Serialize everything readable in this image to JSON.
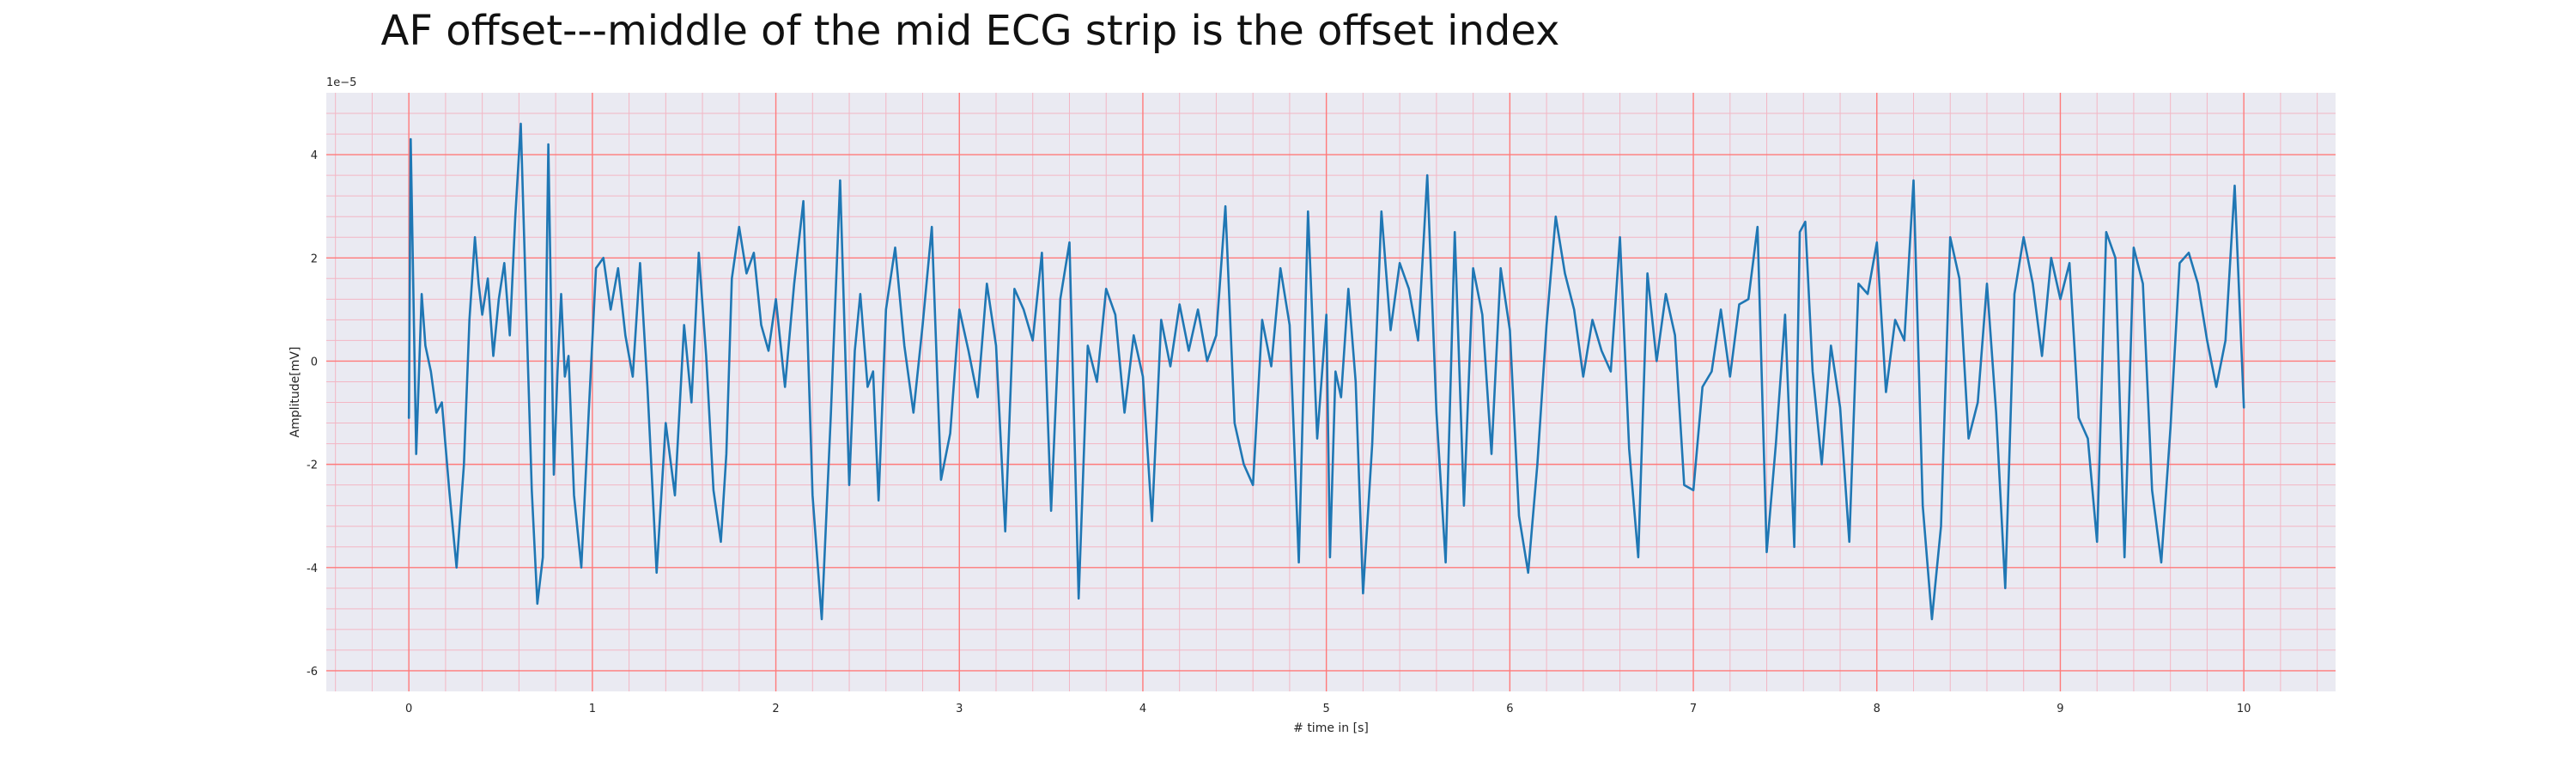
{
  "chart_data": {
    "type": "line",
    "title": "AF offset---middle of the mid ECG strip is the offset index",
    "xlabel": "# time in [s]",
    "ylabel": "Amplitude[mV]",
    "y_scale_label": "1e−5",
    "xlim": [
      -0.45,
      10.5
    ],
    "ylim": [
      -6.4,
      5.2
    ],
    "x_ticks": [
      0,
      1,
      2,
      3,
      4,
      5,
      6,
      7,
      8,
      9,
      10
    ],
    "x_tick_labels": [
      "0",
      "1",
      "2",
      "3",
      "4",
      "5",
      "6",
      "7",
      "8",
      "9",
      "10"
    ],
    "y_ticks": [
      -6,
      -4,
      -2,
      0,
      2,
      4
    ],
    "y_tick_labels": [
      "-6",
      "-4",
      "-2",
      "0",
      "2",
      "4"
    ],
    "grid_major": true,
    "grid_minor": true,
    "colors": {
      "line": "#1f77b4",
      "plot_background": "#eaeaf2",
      "major_grid": "#ff7a7a",
      "minor_grid": "#f3b6c4"
    },
    "series": [
      {
        "x": [
          0.0,
          0.01,
          0.04,
          0.07,
          0.09,
          0.12,
          0.15,
          0.18,
          0.22,
          0.26,
          0.3,
          0.33,
          0.36,
          0.38,
          0.4,
          0.43,
          0.46,
          0.49,
          0.52,
          0.55,
          0.58,
          0.61,
          0.64,
          0.67,
          0.7,
          0.73,
          0.76,
          0.79,
          0.81,
          0.83,
          0.85,
          0.87,
          0.9,
          0.94,
          0.98,
          1.02,
          1.06,
          1.1,
          1.14,
          1.18,
          1.22,
          1.26,
          1.3,
          1.35,
          1.4,
          1.45,
          1.5,
          1.54,
          1.58,
          1.62,
          1.66,
          1.7,
          1.73,
          1.76,
          1.8,
          1.84,
          1.88,
          1.92,
          1.96,
          2.0,
          2.05,
          2.1,
          2.15,
          2.2,
          2.25,
          2.3,
          2.35,
          2.4,
          2.43,
          2.46,
          2.5,
          2.53,
          2.56,
          2.6,
          2.65,
          2.7,
          2.75,
          2.8,
          2.85,
          2.9,
          2.95,
          3.0,
          3.05,
          3.1,
          3.15,
          3.2,
          3.25,
          3.3,
          3.35,
          3.4,
          3.45,
          3.5,
          3.55,
          3.6,
          3.65,
          3.7,
          3.75,
          3.8,
          3.85,
          3.9,
          3.95,
          4.0,
          4.05,
          4.1,
          4.15,
          4.2,
          4.25,
          4.3,
          4.35,
          4.4,
          4.45,
          4.5,
          4.55,
          4.6,
          4.65,
          4.7,
          4.75,
          4.8,
          4.85,
          4.9,
          4.95,
          5.0,
          5.02,
          5.05,
          5.08,
          5.12,
          5.16,
          5.2,
          5.25,
          5.3,
          5.35,
          5.4,
          5.45,
          5.5,
          5.55,
          5.6,
          5.65,
          5.7,
          5.75,
          5.8,
          5.85,
          5.9,
          5.95,
          6.0,
          6.05,
          6.1,
          6.15,
          6.2,
          6.25,
          6.3,
          6.35,
          6.4,
          6.45,
          6.5,
          6.55,
          6.6,
          6.65,
          6.7,
          6.75,
          6.8,
          6.85,
          6.9,
          6.95,
          7.0,
          7.05,
          7.1,
          7.15,
          7.2,
          7.25,
          7.3,
          7.35,
          7.4,
          7.45,
          7.5,
          7.55,
          7.58,
          7.61,
          7.65,
          7.7,
          7.75,
          7.8,
          7.85,
          7.9,
          7.95,
          8.0,
          8.05,
          8.1,
          8.15,
          8.2,
          8.25,
          8.3,
          8.35,
          8.4,
          8.45,
          8.5,
          8.55,
          8.6,
          8.65,
          8.7,
          8.75,
          8.8,
          8.85,
          8.9,
          8.95,
          9.0,
          9.05,
          9.1,
          9.15,
          9.2,
          9.25,
          9.3,
          9.35,
          9.4,
          9.45,
          9.5,
          9.55,
          9.6,
          9.65,
          9.7,
          9.75,
          9.8,
          9.85,
          9.9,
          9.95,
          10.0
        ],
        "y": [
          -1.1,
          4.3,
          -1.8,
          1.3,
          0.3,
          -0.2,
          -1.0,
          -0.8,
          -2.5,
          -4.0,
          -2.0,
          0.8,
          2.4,
          1.5,
          0.9,
          1.6,
          0.1,
          1.2,
          1.9,
          0.5,
          2.8,
          4.6,
          1.0,
          -2.5,
          -4.7,
          -3.8,
          4.2,
          -2.2,
          -0.2,
          1.3,
          -0.3,
          0.1,
          -2.6,
          -4.0,
          -1.0,
          1.8,
          2.0,
          1.0,
          1.8,
          0.5,
          -0.3,
          1.9,
          -0.5,
          -4.1,
          -1.2,
          -2.6,
          0.7,
          -0.8,
          2.1,
          0.1,
          -2.5,
          -3.5,
          -1.8,
          1.6,
          2.6,
          1.7,
          2.1,
          0.7,
          0.2,
          1.2,
          -0.5,
          1.5,
          3.1,
          -2.6,
          -5.0,
          -1.0,
          3.5,
          -2.4,
          0.2,
          1.3,
          -0.5,
          -0.2,
          -2.7,
          1.0,
          2.2,
          0.3,
          -1.0,
          0.7,
          2.6,
          -2.3,
          -1.4,
          1.0,
          0.2,
          -0.7,
          1.5,
          0.3,
          -3.3,
          1.4,
          1.0,
          0.4,
          2.1,
          -2.9,
          1.2,
          2.3,
          -4.6,
          0.3,
          -0.4,
          1.4,
          0.9,
          -1.0,
          0.5,
          -0.3,
          -3.1,
          0.8,
          -0.1,
          1.1,
          0.2,
          1.0,
          0.0,
          0.5,
          3.0,
          -1.2,
          -2.0,
          -2.4,
          0.8,
          -0.1,
          1.8,
          0.7,
          -3.9,
          2.9,
          -1.5,
          0.9,
          -3.8,
          -0.2,
          -0.7,
          1.4,
          -0.4,
          -4.5,
          -1.6,
          2.9,
          0.6,
          1.9,
          1.4,
          0.4,
          3.6,
          -1.0,
          -3.9,
          2.5,
          -2.8,
          1.8,
          0.9,
          -1.8,
          1.8,
          0.6,
          -3.0,
          -4.1,
          -2.0,
          0.7,
          2.8,
          1.7,
          1.0,
          -0.3,
          0.8,
          0.2,
          -0.2,
          2.4,
          -1.7,
          -3.8,
          1.7,
          0.0,
          1.3,
          0.5,
          -2.4,
          -2.5,
          -0.5,
          -0.2,
          1.0,
          -0.3,
          1.1,
          1.2,
          2.6,
          -3.7,
          -1.6,
          0.9,
          -3.6,
          2.5,
          2.7,
          -0.2,
          -2.0,
          0.3,
          -0.9,
          -3.5,
          1.5,
          1.3,
          2.3,
          -0.6,
          0.8,
          0.4,
          3.5,
          -2.8,
          -5.0,
          -3.2,
          2.4,
          1.6,
          -1.5,
          -0.8,
          1.5,
          -1.0,
          -4.4,
          1.3,
          2.4,
          1.5,
          0.1,
          2.0,
          1.2,
          1.9,
          -1.1,
          -1.5,
          -3.5,
          2.5,
          2.0,
          -3.8,
          2.2,
          1.5,
          -2.5,
          -3.9,
          -1.3,
          1.9,
          2.1,
          1.5,
          0.4,
          -0.5,
          0.4,
          3.4,
          -0.9
        ]
      }
    ]
  }
}
